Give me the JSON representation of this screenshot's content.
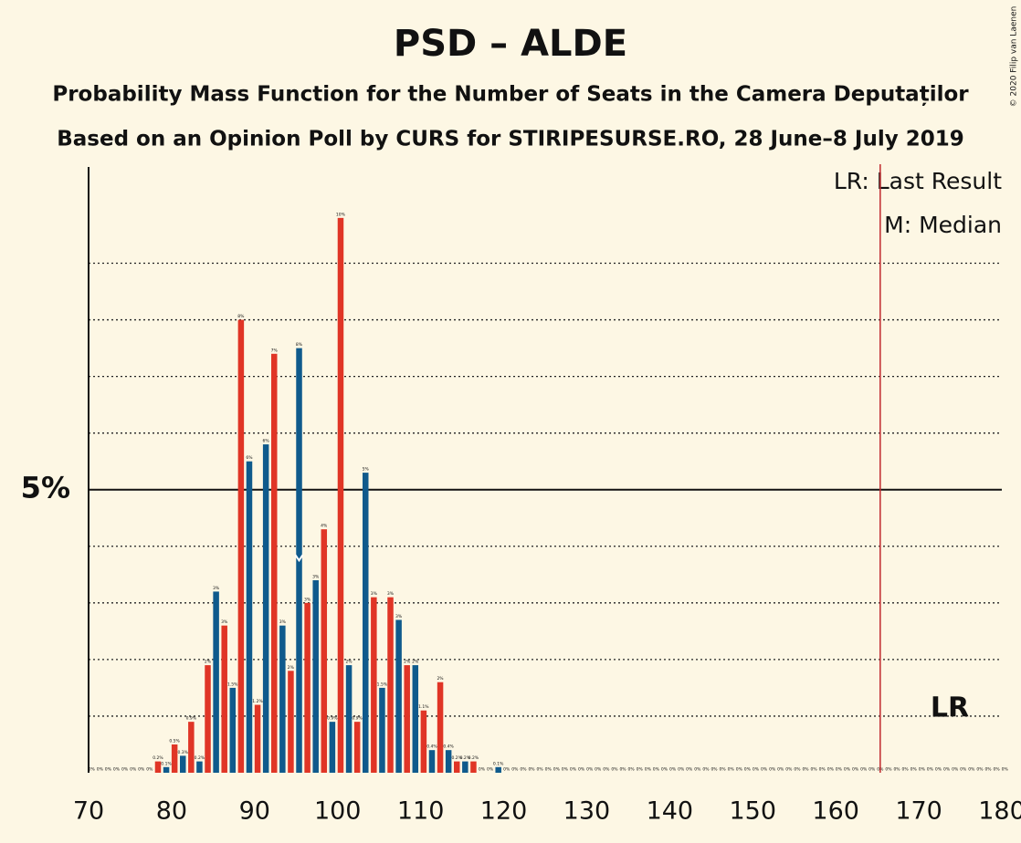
{
  "chart_data": {
    "type": "bar",
    "title": "PSD – ALDE",
    "subtitle": "Probability Mass Function for the Number of Seats in the Camera Deputaților",
    "subtitle2": "Based on an Opinion Poll by CURS for STIRIPESURSE.RO, 28 June–8 July 2019",
    "copyright": "© 2020 Filip van Laenen",
    "legend": [
      "LR: Last Result",
      "M: Median"
    ],
    "last_result_label": "LR",
    "last_result": 165,
    "median": 95,
    "bar_colors": [
      "#e03526",
      "#0f5a8c"
    ],
    "last_result_color": "#c0282d",
    "x": [
      70,
      71,
      72,
      73,
      74,
      75,
      76,
      77,
      78,
      79,
      80,
      81,
      82,
      83,
      84,
      85,
      86,
      87,
      88,
      89,
      90,
      91,
      92,
      93,
      94,
      95,
      96,
      97,
      98,
      99,
      100,
      101,
      102,
      103,
      104,
      105,
      106,
      107,
      108,
      109,
      110,
      111,
      112,
      113,
      114,
      115,
      116,
      117,
      118,
      119,
      120,
      121,
      122,
      123,
      124,
      125,
      126,
      127,
      128,
      129,
      130,
      131,
      132,
      133,
      134,
      135,
      136,
      137,
      138,
      139,
      140,
      141,
      142,
      143,
      144,
      145,
      146,
      147,
      148,
      149,
      150,
      151,
      152,
      153,
      154,
      155,
      156,
      157,
      158,
      159,
      160,
      161,
      162,
      163,
      164,
      165,
      166,
      167,
      168,
      169,
      170,
      171,
      172,
      173,
      174,
      175,
      176,
      177,
      178,
      179,
      180
    ],
    "values": [
      0,
      0,
      0,
      0,
      0,
      0,
      0,
      0,
      0.2,
      0.1,
      0.5,
      0.3,
      0.9,
      0.2,
      1.9,
      3.2,
      2.6,
      1.5,
      8.0,
      5.5,
      1.2,
      5.8,
      7.4,
      2.6,
      1.8,
      7.5,
      3.0,
      3.4,
      4.3,
      0.9,
      9.8,
      1.9,
      0.9,
      5.3,
      3.1,
      1.5,
      3.1,
      2.7,
      1.9,
      1.9,
      1.1,
      0.4,
      1.6,
      0.4,
      0.2,
      0.2,
      0.2,
      0,
      0,
      0.1,
      0,
      0,
      0,
      0,
      0,
      0,
      0,
      0,
      0,
      0,
      0,
      0,
      0,
      0,
      0,
      0,
      0,
      0,
      0,
      0,
      0,
      0,
      0,
      0,
      0,
      0,
      0,
      0,
      0,
      0,
      0,
      0,
      0,
      0,
      0,
      0,
      0,
      0,
      0,
      0,
      0,
      0,
      0,
      0,
      0,
      0,
      0,
      0,
      0,
      0,
      0,
      0,
      0,
      0,
      0,
      0,
      0,
      0,
      0,
      0,
      0
    ],
    "value_labels": [
      "0%",
      "0%",
      "0%",
      "0%",
      "0%",
      "0%",
      "0%",
      "0%",
      "0.2%",
      "0.1%",
      "0.5%",
      "0.3%",
      "0.9%",
      "0.2%",
      "2%",
      "3%",
      "3%",
      "1.5%",
      "8%",
      "6%",
      "1.2%",
      "6%",
      "7%",
      "3%",
      "2%",
      "8%",
      "3%",
      "3%",
      "4%",
      "0.9%",
      "10%",
      "2%",
      "0.9%",
      "5%",
      "3%",
      "1.5%",
      "3%",
      "3%",
      "2%",
      "2%",
      "1.1%",
      "0.4%",
      "2%",
      "0.4%",
      "0.2%",
      "0.2%",
      "0.2%",
      "0%",
      "0%",
      "0.1%",
      "0%",
      "0%",
      "0%",
      "0%",
      "0%",
      "0%",
      "0%",
      "0%",
      "0%",
      "0%",
      "0%",
      "0%",
      "0%",
      "0%",
      "0%",
      "0%",
      "0%",
      "0%",
      "0%",
      "0%",
      "0%",
      "0%",
      "0%",
      "0%",
      "0%",
      "0%",
      "0%",
      "0%",
      "0%",
      "0%",
      "0%",
      "0%",
      "0%",
      "0%",
      "0%",
      "0%",
      "0%",
      "0%",
      "0%",
      "0%",
      "0%",
      "0%",
      "0%",
      "0%",
      "0%",
      "0%",
      "0%",
      "0%",
      "0%",
      "0%",
      "0%",
      "0%",
      "0%",
      "0%",
      "0%",
      "0%",
      "0%",
      "0%",
      "0%",
      "0%",
      "0%"
    ],
    "xlim": [
      70,
      180
    ],
    "xticks": [
      70,
      80,
      90,
      100,
      110,
      120,
      130,
      140,
      150,
      160,
      170,
      180
    ],
    "ylim": [
      0,
      10.7
    ],
    "yticks": [
      {
        "value": 5,
        "label": "5%"
      }
    ],
    "minor_grid": [
      1,
      2,
      3,
      4,
      6,
      7,
      8,
      9
    ]
  }
}
